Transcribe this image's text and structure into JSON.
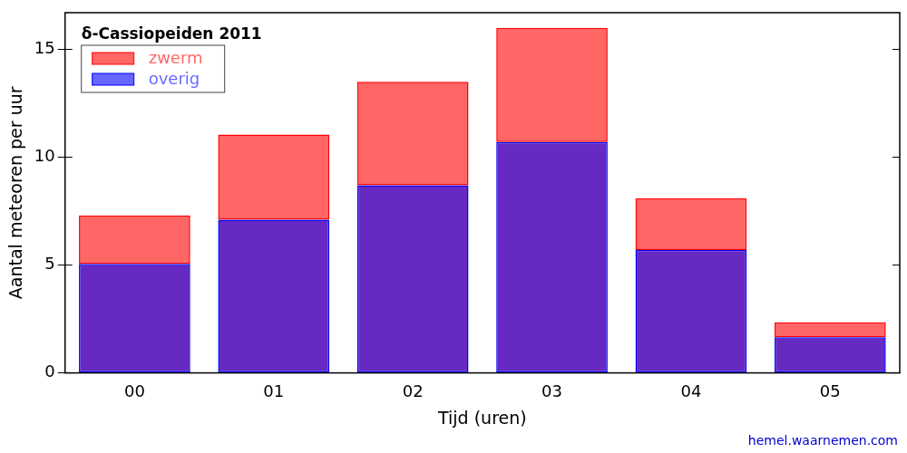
{
  "chart_data": {
    "type": "bar",
    "title": "δ-Cassiopeiden 2011",
    "x_label": "Tijd (uren)",
    "y_label": "Aantal meteoren per uur",
    "source": "hemel.waarnemen.com",
    "categories": [
      "00",
      "01",
      "02",
      "03",
      "04",
      "05"
    ],
    "series": [
      {
        "name": "overig",
        "color": "#0000ff",
        "values": [
          5.05,
          7.1,
          8.7,
          10.7,
          5.7,
          1.65
        ]
      },
      {
        "name": "zwerm",
        "color": "#ff0000",
        "values": [
          2.25,
          3.95,
          4.8,
          5.3,
          2.4,
          0.7
        ]
      }
    ],
    "stacked": true,
    "legend": "upper left",
    "grid": false,
    "ylim": [
      0,
      16.7
    ],
    "yticks": [
      0,
      5,
      10,
      15
    ]
  }
}
